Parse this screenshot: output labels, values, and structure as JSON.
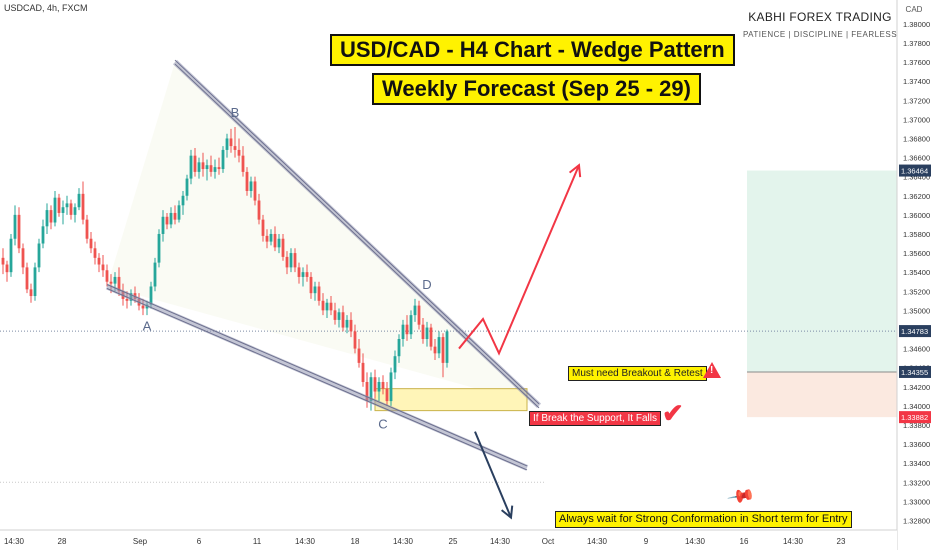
{
  "header": {
    "symbol_label": "USDCAD, 4h, FXCM",
    "brand": "KABHI FOREX TRADING",
    "tagline": "PATIENCE  |  DISCIPLINE  |  FEARLESS"
  },
  "titles": {
    "line1": "USD/CAD - H4 Chart - Wedge Pattern",
    "line2": "Weekly Forecast (Sep 25 - 29)"
  },
  "annotations": {
    "breakout": "Must need Breakout & Retest",
    "support": "If Break the Support, It Falls",
    "conformation": "Always wait for Strong Conformation in Short term for Entry",
    "warn_icon": "warning-triangle-icon",
    "check_icon": "check-icon",
    "pin_icon": "pin-icon"
  },
  "colors": {
    "bull": "#26a69a",
    "bear": "#ef5350",
    "title_bg": "#fff200",
    "forecast_up": "#f23645",
    "forecast_down": "#2a3f5f",
    "wedge": "#9598b3",
    "support_zone": "#fff5b8"
  },
  "chart_data": {
    "type": "candlestick",
    "currency": "CAD",
    "ylim": [
      1.327,
      1.3825
    ],
    "y_ticks": [
      "1.38000",
      "1.37800",
      "1.37600",
      "1.37400",
      "1.37200",
      "1.37000",
      "1.36800",
      "1.36600",
      "1.36400",
      "1.36200",
      "1.36000",
      "1.35800",
      "1.35600",
      "1.35400",
      "1.35200",
      "1.35000",
      "1.34800",
      "1.34600",
      "1.34400",
      "1.34200",
      "1.34000",
      "1.33800",
      "1.33600",
      "1.33400",
      "1.33200",
      "1.33000",
      "1.32800"
    ],
    "x_ticks": [
      "14:30",
      "28",
      "Sep",
      "6",
      "11",
      "14:30",
      "18",
      "14:30",
      "25",
      "14:30",
      "Oct",
      "14:30",
      "9",
      "14:30",
      "16",
      "14:30",
      "23"
    ],
    "price_labels": [
      {
        "value": 1.36464,
        "label": "1.36464",
        "color": "#2a3f5f"
      },
      {
        "value": 1.34783,
        "label": "1.34783",
        "color": "#2a3f5f"
      },
      {
        "value": 1.34355,
        "label": "1.34355",
        "color": "#2a3f5f"
      },
      {
        "value": 1.33882,
        "label": "1.33882",
        "color": "#f23645"
      }
    ],
    "points": [
      {
        "label": "A",
        "x_index": 36,
        "y": 1.3498
      },
      {
        "label": "B",
        "x_index": 58,
        "y": 1.3692
      },
      {
        "label": "C",
        "x_index": 95,
        "y": 1.3395
      },
      {
        "label": "D",
        "x_index": 106,
        "y": 1.3512
      }
    ],
    "wedge": {
      "upper": [
        [
          43,
          1.376
        ],
        [
          134,
          1.34
        ]
      ],
      "lower": [
        [
          26,
          1.3525
        ],
        [
          131,
          1.3335
        ]
      ]
    },
    "support_zone": {
      "x_start": 93,
      "x_end": 131,
      "y_low": 1.3395,
      "y_high": 1.3418
    },
    "forecast_up": [
      [
        114,
        1.346
      ],
      [
        120,
        1.3491
      ],
      [
        124,
        1.3455
      ],
      [
        144,
        1.3652
      ]
    ],
    "forecast_down": [
      [
        118,
        1.3373
      ],
      [
        127,
        1.3283
      ]
    ],
    "long_position": {
      "entry": 1.34355,
      "target": 1.36464,
      "stop": 1.33882
    },
    "candles": [
      [
        1.3555,
        1.3565,
        1.3538,
        1.3548
      ],
      [
        1.3548,
        1.3552,
        1.353,
        1.354
      ],
      [
        1.354,
        1.358,
        1.3535,
        1.3575
      ],
      [
        1.3575,
        1.361,
        1.3568,
        1.36
      ],
      [
        1.36,
        1.3608,
        1.356,
        1.3565
      ],
      [
        1.3565,
        1.357,
        1.3538,
        1.3545
      ],
      [
        1.3545,
        1.355,
        1.3518,
        1.3522
      ],
      [
        1.3522,
        1.3528,
        1.3508,
        1.3515
      ],
      [
        1.3515,
        1.355,
        1.351,
        1.3545
      ],
      [
        1.3545,
        1.3575,
        1.354,
        1.357
      ],
      [
        1.357,
        1.3595,
        1.3565,
        1.3588
      ],
      [
        1.3588,
        1.3612,
        1.358,
        1.3605
      ],
      [
        1.3605,
        1.361,
        1.3585,
        1.3592
      ],
      [
        1.3592,
        1.3625,
        1.3588,
        1.3618
      ],
      [
        1.3618,
        1.3622,
        1.3598,
        1.3602
      ],
      [
        1.3602,
        1.3615,
        1.359,
        1.3608
      ],
      [
        1.3608,
        1.362,
        1.36,
        1.3612
      ],
      [
        1.3612,
        1.3616,
        1.3595,
        1.36
      ],
      [
        1.36,
        1.3612,
        1.3592,
        1.3608
      ],
      [
        1.3608,
        1.3628,
        1.3605,
        1.3622
      ],
      [
        1.3622,
        1.3635,
        1.359,
        1.3595
      ],
      [
        1.3595,
        1.36,
        1.357,
        1.3575
      ],
      [
        1.3575,
        1.3582,
        1.356,
        1.3565
      ],
      [
        1.3565,
        1.3572,
        1.3548,
        1.3555
      ],
      [
        1.3555,
        1.356,
        1.354,
        1.3548
      ],
      [
        1.3548,
        1.3558,
        1.3535,
        1.3542
      ],
      [
        1.3542,
        1.3548,
        1.3525,
        1.353
      ],
      [
        1.353,
        1.3538,
        1.3518,
        1.3528
      ],
      [
        1.3528,
        1.354,
        1.352,
        1.3535
      ],
      [
        1.3535,
        1.3545,
        1.3515,
        1.352
      ],
      [
        1.352,
        1.3528,
        1.3505,
        1.3512
      ],
      [
        1.3512,
        1.352,
        1.3502,
        1.351
      ],
      [
        1.351,
        1.3522,
        1.3505,
        1.3518
      ],
      [
        1.3518,
        1.3525,
        1.3508,
        1.3512
      ],
      [
        1.3512,
        1.3518,
        1.35,
        1.3505
      ],
      [
        1.3505,
        1.3512,
        1.3495,
        1.3502
      ],
      [
        1.3502,
        1.351,
        1.3495,
        1.3506
      ],
      [
        1.3506,
        1.353,
        1.3502,
        1.3525
      ],
      [
        1.3525,
        1.3555,
        1.352,
        1.355
      ],
      [
        1.355,
        1.3585,
        1.3545,
        1.358
      ],
      [
        1.358,
        1.3605,
        1.3572,
        1.3598
      ],
      [
        1.3598,
        1.3602,
        1.3585,
        1.359
      ],
      [
        1.359,
        1.3608,
        1.3586,
        1.3602
      ],
      [
        1.3602,
        1.361,
        1.359,
        1.3595
      ],
      [
        1.3595,
        1.3615,
        1.3592,
        1.361
      ],
      [
        1.361,
        1.3625,
        1.36,
        1.362
      ],
      [
        1.362,
        1.3642,
        1.3615,
        1.3638
      ],
      [
        1.3638,
        1.3668,
        1.3632,
        1.3662
      ],
      [
        1.3662,
        1.367,
        1.364,
        1.3645
      ],
      [
        1.3645,
        1.366,
        1.3638,
        1.3655
      ],
      [
        1.3655,
        1.3665,
        1.364,
        1.3648
      ],
      [
        1.3648,
        1.3658,
        1.3636,
        1.3652
      ],
      [
        1.3652,
        1.3662,
        1.364,
        1.3645
      ],
      [
        1.3645,
        1.3658,
        1.3638,
        1.365
      ],
      [
        1.365,
        1.366,
        1.3642,
        1.3648
      ],
      [
        1.3648,
        1.3672,
        1.3644,
        1.3668
      ],
      [
        1.3668,
        1.3685,
        1.366,
        1.368
      ],
      [
        1.368,
        1.369,
        1.3665,
        1.3672
      ],
      [
        1.3672,
        1.3692,
        1.366,
        1.3668
      ],
      [
        1.3668,
        1.368,
        1.3655,
        1.3662
      ],
      [
        1.3662,
        1.3672,
        1.364,
        1.3645
      ],
      [
        1.3645,
        1.365,
        1.362,
        1.3625
      ],
      [
        1.3625,
        1.364,
        1.3618,
        1.3635
      ],
      [
        1.3635,
        1.364,
        1.361,
        1.3615
      ],
      [
        1.3615,
        1.3622,
        1.359,
        1.3595
      ],
      [
        1.3595,
        1.36,
        1.3572,
        1.3578
      ],
      [
        1.3578,
        1.3585,
        1.3565,
        1.3572
      ],
      [
        1.3572,
        1.3585,
        1.3568,
        1.358
      ],
      [
        1.358,
        1.3588,
        1.3562,
        1.3566
      ],
      [
        1.3566,
        1.358,
        1.356,
        1.3575
      ],
      [
        1.3575,
        1.358,
        1.3552,
        1.3556
      ],
      [
        1.3556,
        1.3562,
        1.3538,
        1.3545
      ],
      [
        1.3545,
        1.3565,
        1.354,
        1.356
      ],
      [
        1.356,
        1.3565,
        1.354,
        1.3545
      ],
      [
        1.3545,
        1.355,
        1.3528,
        1.3535
      ],
      [
        1.3535,
        1.3545,
        1.3525,
        1.354
      ],
      [
        1.354,
        1.3548,
        1.353,
        1.3535
      ],
      [
        1.3535,
        1.354,
        1.3512,
        1.3518
      ],
      [
        1.3518,
        1.353,
        1.351,
        1.3525
      ],
      [
        1.3525,
        1.353,
        1.3505,
        1.351
      ],
      [
        1.351,
        1.3518,
        1.3495,
        1.35
      ],
      [
        1.35,
        1.3512,
        1.3492,
        1.3508
      ],
      [
        1.3508,
        1.3515,
        1.3495,
        1.35
      ],
      [
        1.35,
        1.3508,
        1.3485,
        1.349
      ],
      [
        1.349,
        1.3502,
        1.3482,
        1.3498
      ],
      [
        1.3498,
        1.3505,
        1.3478,
        1.3482
      ],
      [
        1.3482,
        1.3495,
        1.3476,
        1.349
      ],
      [
        1.349,
        1.3498,
        1.3472,
        1.3478
      ],
      [
        1.3478,
        1.3485,
        1.3455,
        1.346
      ],
      [
        1.346,
        1.347,
        1.344,
        1.3445
      ],
      [
        1.3445,
        1.3455,
        1.342,
        1.3425
      ],
      [
        1.3425,
        1.3435,
        1.3398,
        1.3405
      ],
      [
        1.3405,
        1.3435,
        1.3395,
        1.343
      ],
      [
        1.343,
        1.3438,
        1.3408,
        1.3415
      ],
      [
        1.3415,
        1.343,
        1.3405,
        1.3425
      ],
      [
        1.3425,
        1.3432,
        1.3412,
        1.3418
      ],
      [
        1.3418,
        1.3425,
        1.34,
        1.3405
      ],
      [
        1.3405,
        1.344,
        1.34,
        1.3435
      ],
      [
        1.3435,
        1.3458,
        1.3428,
        1.3452
      ],
      [
        1.3452,
        1.3475,
        1.3445,
        1.347
      ],
      [
        1.347,
        1.349,
        1.3462,
        1.3485
      ],
      [
        1.3485,
        1.3495,
        1.3468,
        1.3475
      ],
      [
        1.3475,
        1.35,
        1.347,
        1.3495
      ],
      [
        1.3495,
        1.3512,
        1.3488,
        1.3505
      ],
      [
        1.3505,
        1.351,
        1.348,
        1.3485
      ],
      [
        1.3485,
        1.3492,
        1.3465,
        1.347
      ],
      [
        1.347,
        1.3488,
        1.3462,
        1.3482
      ],
      [
        1.3482,
        1.3486,
        1.3458,
        1.3462
      ],
      [
        1.3462,
        1.347,
        1.3448,
        1.3455
      ],
      [
        1.3455,
        1.3478,
        1.345,
        1.3472
      ],
      [
        1.3472,
        1.3476,
        1.343,
        1.3445
      ],
      [
        1.3445,
        1.348,
        1.344,
        1.3478
      ]
    ]
  }
}
